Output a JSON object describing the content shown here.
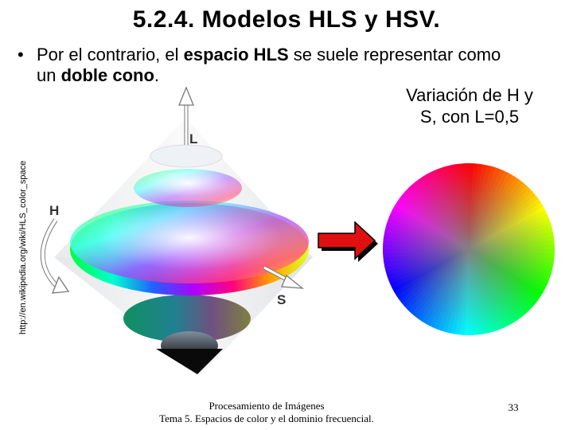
{
  "slide": {
    "title": "5.2.4. Modelos HLS y HSV.",
    "bullet": {
      "marker": "•",
      "part1": "Por el contrario, el ",
      "bold1": "espacio HLS",
      "part2": " se suele representar como",
      "line2_start": "un ",
      "bold2": "doble cono",
      "line2_end": "."
    },
    "caption": "Variación de H y S, con L=0,5",
    "source_url": "http://en.wikipedia.org/wiki/HLS_color_space",
    "figure_labels": {
      "L": "L",
      "H": "H",
      "S": "S"
    },
    "footer": {
      "line1": "Procesamiento de Imágenes",
      "line2": "Tema 5. Espacios de color y el dominio frecuencial."
    },
    "page_number": "33"
  },
  "colors": {
    "arrow_fill": "#e01010",
    "arrow_outline": "#000000"
  }
}
